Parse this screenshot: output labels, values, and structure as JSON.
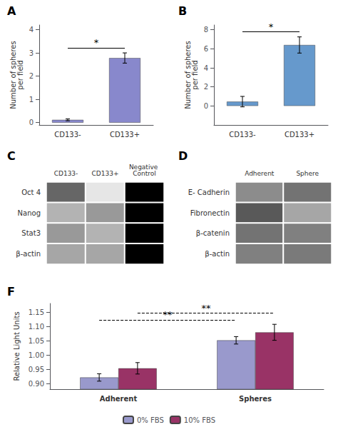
{
  "chart_data": [
    {
      "type": "bar",
      "title": "A",
      "categories": [
        "CD133-",
        "CD133+"
      ],
      "values": [
        0.12,
        2.78
      ],
      "errors": [
        0.04,
        0.22
      ],
      "color": "#8888cc",
      "ylabel": "Number of spheres\nper field",
      "ylim": [
        -0.1,
        4.2
      ],
      "yticks": [
        0,
        1,
        2,
        3,
        4
      ],
      "grid": false,
      "annotations": [
        {
          "text": "*",
          "from": "CD133-",
          "to": "CD133+",
          "line_style": "solid"
        }
      ]
    },
    {
      "type": "bar",
      "title": "B",
      "categories": [
        "CD133-",
        "CD133+"
      ],
      "values": [
        0.45,
        6.4
      ],
      "errors": [
        0.55,
        0.85
      ],
      "color": "#6699cc",
      "ylabel": "Number of spheres\nper field",
      "ylim": [
        -2.0,
        8.5
      ],
      "yticks": [
        0,
        2,
        4,
        6,
        8
      ],
      "grid": false,
      "annotations": [
        {
          "text": "*",
          "from": "CD133-",
          "to": "CD133+",
          "line_style": "solid"
        }
      ]
    },
    {
      "type": "heatmap",
      "title": "C",
      "categories": [
        "CD133-",
        "CD133+",
        "Negative Control"
      ],
      "rows": [
        "Oct 4",
        "Nanog",
        "Stat3",
        "β-actin"
      ],
      "visible": [
        [
          true,
          true,
          false
        ],
        [
          true,
          true,
          false
        ],
        [
          true,
          true,
          false
        ],
        [
          true,
          true,
          false
        ]
      ],
      "cells": [
        [
          0.4,
          0.9,
          0.0
        ],
        [
          0.7,
          0.6,
          0.0
        ],
        [
          0.6,
          0.7,
          0.0
        ],
        [
          0.65,
          0.65,
          0.0
        ]
      ]
    },
    {
      "type": "heatmap",
      "title": "D",
      "categories": [
        "Adherent",
        "Sphere"
      ],
      "rows": [
        "E- Cadherin",
        "Fibronectin",
        "β-catenin",
        "β-actin"
      ],
      "cells": [
        [
          0.55,
          0.45
        ],
        [
          0.35,
          0.65
        ],
        [
          0.45,
          0.5
        ],
        [
          0.5,
          0.48
        ]
      ]
    },
    {
      "type": "bar",
      "title": "F",
      "categories": [
        "Adherent",
        "Spheres"
      ],
      "series": [
        {
          "name": "0% FBS",
          "color": "#9999cc",
          "values": [
            0.921,
            1.051
          ],
          "errors": [
            0.013,
            0.013
          ]
        },
        {
          "name": "10% FBS",
          "color": "#993366",
          "values": [
            0.953,
            1.079
          ],
          "errors": [
            0.02,
            0.028
          ]
        }
      ],
      "ylabel": "Relative Light Units",
      "ylim": [
        0.88,
        1.18
      ],
      "yticks": [
        {
          "value": 0.9,
          "label": "0.90"
        },
        0.95,
        {
          "value": 1.0,
          "label": "1.00"
        },
        1.05,
        {
          "value": 1.1,
          "label": "1.10"
        },
        1.15
      ],
      "grid": false,
      "legend": "bottom",
      "annotations": [
        {
          "text": "**",
          "series": "0% FBS",
          "from": "Adherent",
          "to": "Spheres",
          "line_style": "dashed"
        },
        {
          "text": "**",
          "series": "10% FBS",
          "from": "Adherent",
          "to": "Spheres",
          "line_style": "dashed"
        }
      ]
    }
  ]
}
